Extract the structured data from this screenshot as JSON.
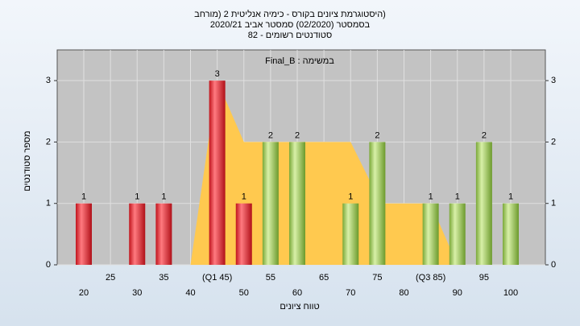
{
  "chart_data": {
    "type": "bar",
    "title": "(היסטוגרמת ציונים בקורס - כימיה אנליטית 2 (מורחב",
    "subtitle": "בסמסטר  (02/2020)  סמסטר אביב 2020/21",
    "subtitle2": "סטודנטים רשומים - 82",
    "annotation": "במשימה : Final_B",
    "x_label": "טווח ציונים",
    "y_label": "מספר סטודנטים",
    "categories": [
      "20",
      "25",
      "30",
      "35",
      "40",
      "(Q1 45)",
      "50",
      "55",
      "60",
      "65",
      "70",
      "75",
      "80",
      "(Q3 85)",
      "90",
      "95",
      "100"
    ],
    "values": [
      1,
      0,
      1,
      1,
      0,
      3,
      1,
      2,
      2,
      0,
      1,
      2,
      0,
      1,
      1,
      2,
      1
    ],
    "colors": [
      "red",
      "red",
      "red",
      "red",
      "red",
      "red",
      "red",
      "green",
      "green",
      "green",
      "green",
      "green",
      "green",
      "green",
      "green",
      "green",
      "green"
    ],
    "area": {
      "x": [
        4,
        5,
        6,
        7,
        8,
        9,
        10,
        10.8,
        11,
        12,
        13,
        14
      ],
      "values": [
        0,
        3,
        2,
        2,
        2,
        2,
        2,
        1.3,
        1,
        1,
        1,
        0
      ],
      "color": "#ffc94f"
    },
    "ylim": [
      0,
      3.5
    ],
    "yticks": [
      0,
      1,
      2,
      3
    ],
    "grid": true,
    "right_axis": true
  }
}
